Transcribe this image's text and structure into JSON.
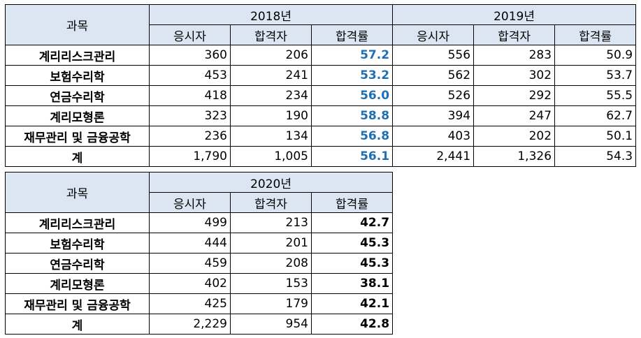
{
  "top_table": {
    "subject_header": "과목",
    "year_a": "2018년",
    "year_b": "2019년",
    "col_applicants": "응시자",
    "col_passers": "합격자",
    "col_rate": "합격률",
    "rows": [
      {
        "subject": "계리리스크관리",
        "a_app": "360",
        "a_pass": "206",
        "a_rate": "57.2",
        "b_app": "556",
        "b_pass": "283",
        "b_rate": "50.9"
      },
      {
        "subject": "보험수리학",
        "a_app": "453",
        "a_pass": "241",
        "a_rate": "53.2",
        "b_app": "562",
        "b_pass": "302",
        "b_rate": "53.7"
      },
      {
        "subject": "연금수리학",
        "a_app": "418",
        "a_pass": "234",
        "a_rate": "56.0",
        "b_app": "526",
        "b_pass": "292",
        "b_rate": "55.5"
      },
      {
        "subject": "계리모형론",
        "a_app": "323",
        "a_pass": "190",
        "a_rate": "58.8",
        "b_app": "394",
        "b_pass": "247",
        "b_rate": "62.7"
      },
      {
        "subject": "재무관리 및 금융공학",
        "a_app": "236",
        "a_pass": "134",
        "a_rate": "56.8",
        "b_app": "403",
        "b_pass": "202",
        "b_rate": "50.1"
      },
      {
        "subject": "계",
        "a_app": "1,790",
        "a_pass": "1,005",
        "a_rate": "56.1",
        "b_app": "2,441",
        "b_pass": "1,326",
        "b_rate": "54.3"
      }
    ]
  },
  "bottom_table": {
    "subject_header": "과목",
    "year": "2020년",
    "col_applicants": "응시자",
    "col_passers": "합격자",
    "col_rate": "합격률",
    "rows": [
      {
        "subject": "계리리스크관리",
        "app": "499",
        "pass": "213",
        "rate": "42.7"
      },
      {
        "subject": "보험수리학",
        "app": "444",
        "pass": "201",
        "rate": "45.3"
      },
      {
        "subject": "연금수리학",
        "app": "459",
        "pass": "208",
        "rate": "45.3"
      },
      {
        "subject": "계리모형론",
        "app": "402",
        "pass": "153",
        "rate": "38.1"
      },
      {
        "subject": "재무관리 및 금융공학",
        "app": "425",
        "pass": "179",
        "rate": "42.1"
      },
      {
        "subject": "계",
        "app": "2,229",
        "pass": "954",
        "rate": "42.8"
      }
    ]
  },
  "colors": {
    "header_background": "#dce6f2",
    "highlight_rate_text": "#1f6fb2",
    "border": "#000000"
  }
}
